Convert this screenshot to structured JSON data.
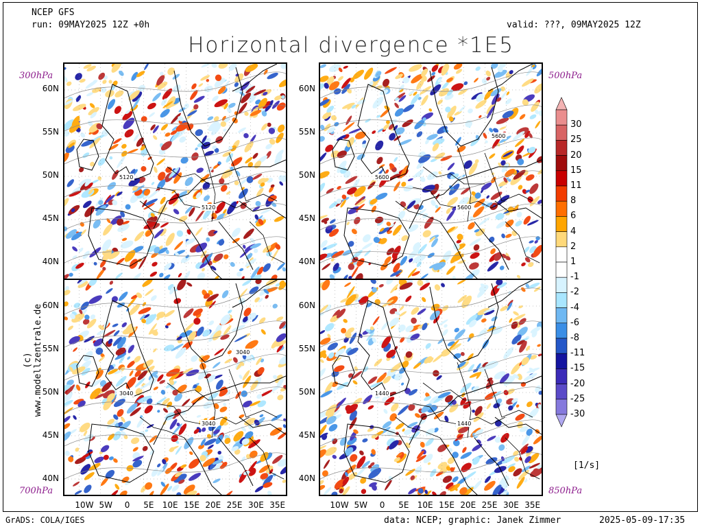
{
  "header": {
    "model": "NCEP GFS",
    "run": "run: 09MAY2025 12Z +0h",
    "valid": "valid: ???, 09MAY2025 12Z",
    "title": "Horizontal divergence *1E5"
  },
  "panels": [
    {
      "id": "tl",
      "level": "300hPa",
      "contour_labels": [
        "5120",
        "5120"
      ]
    },
    {
      "id": "tr",
      "level": "500hPa",
      "contour_labels": [
        "5600",
        "5600",
        "5600"
      ]
    },
    {
      "id": "bl",
      "level": "700hPa",
      "contour_labels": [
        "3040",
        "3040",
        "3040"
      ]
    },
    {
      "id": "br",
      "level": "850hPa",
      "contour_labels": [
        "1440",
        "1440"
      ]
    }
  ],
  "lat_labels": [
    "60N",
    "55N",
    "50N",
    "45N",
    "40N"
  ],
  "lon_labels": [
    "10W",
    "5W",
    "0",
    "5E",
    "10E",
    "15E",
    "20E",
    "25E",
    "30E",
    "35E"
  ],
  "colorbar": {
    "labels": [
      "30",
      "25",
      "20",
      "15",
      "11",
      "8",
      "6",
      "4",
      "2",
      "1",
      "-1",
      "-2",
      "-4",
      "-6",
      "-8",
      "-11",
      "-15",
      "-20",
      "-25",
      "-30"
    ],
    "colors": [
      "#f3b3b3",
      "#ea8e8e",
      "#d86464",
      "#b82828",
      "#a00c0c",
      "#c80000",
      "#f23c00",
      "#ff6e00",
      "#ffa500",
      "#ffd97a",
      "#ffffff",
      "#ffffff",
      "#d7f3ff",
      "#a9e6ff",
      "#6fb8f2",
      "#3a8ee6",
      "#2457c8",
      "#1414a0",
      "#3b2bb8",
      "#5a4ac8",
      "#8579dd",
      "#b0a8f0"
    ],
    "unit": "[1/s]"
  },
  "footer": {
    "left": "GrADS: COLA/IGES",
    "credit": "data: NCEP; graphic: Janek Zimmer",
    "timestamp": "2025-05-09-17:35"
  },
  "side_text": "(c) www.modellzentrale.de"
}
